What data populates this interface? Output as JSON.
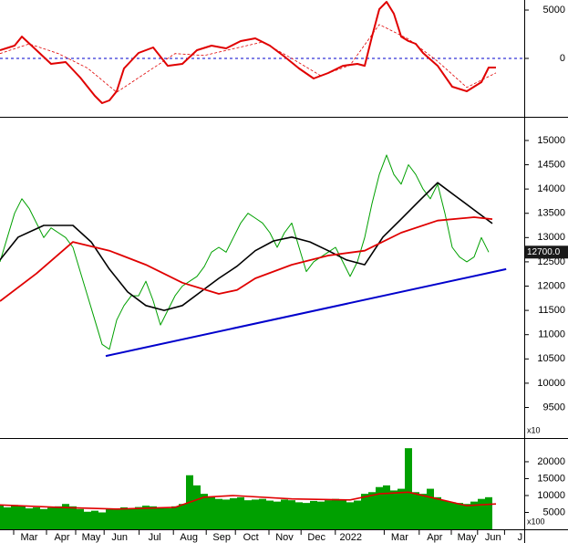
{
  "chart_data": [
    {
      "type": "line",
      "xlim": [
        0,
        72
      ],
      "ylim": [
        -6040,
        6040
      ],
      "yticks": [
        0,
        5000
      ],
      "reference_line": {
        "value": 0,
        "color": "#0000cc"
      },
      "series": [
        {
          "color": "#e00000",
          "width": 2,
          "x": [
            0,
            2,
            3,
            5,
            7,
            9,
            11,
            13,
            14,
            15,
            16,
            17,
            19,
            21,
            23,
            25,
            27,
            29,
            31,
            33,
            35,
            37,
            39,
            41,
            43,
            45,
            47,
            49,
            50,
            51,
            52,
            53,
            54,
            55,
            56,
            57,
            58,
            60,
            62,
            64,
            66,
            67,
            68
          ],
          "values": [
            850,
            1320,
            2260,
            850,
            -570,
            -380,
            -1980,
            -3870,
            -4620,
            -4340,
            -3400,
            -1040,
            570,
            1130,
            -760,
            -570,
            850,
            1320,
            1040,
            1790,
            2080,
            1320,
            190,
            -1040,
            -2080,
            -1510,
            -760,
            -570,
            -760,
            2260,
            5090,
            5850,
            4620,
            2260,
            1790,
            1510,
            570,
            -760,
            -2930,
            -3400,
            -2450,
            -940,
            -940
          ]
        },
        {
          "color": "#e00000",
          "width": 0.8,
          "dashed": true,
          "x": [
            0,
            4,
            8,
            12,
            16,
            20,
            24,
            28,
            32,
            36,
            40,
            44,
            48,
            52,
            56,
            60,
            64,
            68
          ],
          "values": [
            500,
            1500,
            500,
            -1000,
            -3500,
            -1500,
            500,
            300,
            1000,
            1700,
            0,
            -1800,
            -700,
            3500,
            2000,
            -300,
            -3000,
            -1500
          ]
        }
      ]
    },
    {
      "type": "line",
      "xlim": [
        0,
        72
      ],
      "ylim": [
        8870,
        15450
      ],
      "yticks": [
        9500,
        10000,
        10500,
        11000,
        11500,
        12000,
        12500,
        13000,
        13500,
        14000,
        14500,
        15000
      ],
      "axis_note": "x10",
      "last_value_label": {
        "value": 12700,
        "label": "12700.0"
      },
      "series": [
        {
          "color": "#00a000",
          "width": 1,
          "x": [
            0,
            1,
            2,
            3,
            4,
            5,
            6,
            7,
            8,
            9,
            10,
            11,
            12,
            13,
            14,
            15,
            16,
            17,
            18,
            19,
            20,
            21,
            22,
            23,
            24,
            25,
            26,
            27,
            28,
            29,
            30,
            31,
            32,
            33,
            34,
            35,
            36,
            37,
            38,
            39,
            40,
            41,
            42,
            43,
            44,
            45,
            46,
            47,
            48,
            49,
            50,
            51,
            52,
            53,
            54,
            55,
            56,
            57,
            58,
            59,
            60,
            61,
            62,
            63,
            64,
            65,
            66,
            67
          ],
          "values": [
            12500,
            13000,
            13500,
            13800,
            13600,
            13300,
            13000,
            13200,
            13100,
            13000,
            12800,
            12300,
            11800,
            11300,
            10800,
            10700,
            11300,
            11600,
            11800,
            11800,
            12100,
            11700,
            11200,
            11500,
            11800,
            12000,
            12100,
            12200,
            12400,
            12700,
            12800,
            12700,
            13000,
            13300,
            13500,
            13400,
            13300,
            13100,
            12800,
            13100,
            13300,
            12800,
            12300,
            12500,
            12600,
            12700,
            12800,
            12500,
            12200,
            12500,
            13000,
            13700,
            14300,
            14700,
            14300,
            14100,
            14500,
            14300,
            14000,
            13800,
            14100,
            13500,
            12800,
            12600,
            12500,
            12600,
            13000,
            12700
          ]
        },
        {
          "color": "#000000",
          "width": 1.6,
          "x": [
            0,
            2.5,
            6,
            10,
            12.5,
            15,
            17.5,
            20,
            22.5,
            25,
            27.5,
            30,
            32.5,
            35,
            37.5,
            40,
            42.5,
            45,
            47.5,
            50,
            52.5,
            55,
            57.5,
            60,
            62.5,
            65,
            67.5
          ],
          "values": [
            12540,
            13010,
            13250,
            13250,
            12910,
            12350,
            11880,
            11600,
            11500,
            11600,
            11880,
            12160,
            12410,
            12730,
            12930,
            13010,
            12910,
            12730,
            12540,
            12440,
            13010,
            13380,
            13760,
            14130,
            13850,
            13570,
            13290
          ]
        },
        {
          "color": "#e00000",
          "width": 1.8,
          "x": [
            0,
            5,
            10,
            15,
            20,
            25,
            30,
            32.5,
            35,
            40,
            45,
            50,
            55,
            60,
            65,
            67.5
          ],
          "values": [
            11690,
            12260,
            12910,
            12730,
            12440,
            12070,
            11840,
            11920,
            12160,
            12440,
            12630,
            12730,
            13100,
            13350,
            13420,
            13380
          ]
        },
        {
          "color": "#0000cc",
          "width": 2,
          "x": [
            14.5,
            69.4
          ],
          "values": [
            10560,
            12350
          ]
        }
      ]
    },
    {
      "type": "bar",
      "xlim": [
        0,
        72
      ],
      "ylim": [
        0,
        26200
      ],
      "yticks": [
        5000,
        10000,
        15000,
        20000
      ],
      "axis_note": "x100",
      "color": "#00a000",
      "values": [
        7000,
        6500,
        7200,
        6800,
        6200,
        6500,
        6000,
        6400,
        6800,
        7500,
        6800,
        6000,
        5200,
        5500,
        5000,
        6200,
        5800,
        6500,
        6000,
        6600,
        7000,
        6800,
        6500,
        6200,
        6800,
        7500,
        16000,
        13000,
        10500,
        9500,
        9000,
        8800,
        9200,
        9500,
        8600,
        8800,
        9000,
        8500,
        8200,
        8800,
        8600,
        8000,
        7800,
        8400,
        8200,
        8600,
        9000,
        8800,
        8000,
        8500,
        10500,
        11000,
        12500,
        13000,
        11500,
        12000,
        24000,
        11000,
        10500,
        12000,
        9500,
        8500,
        8000,
        7800,
        7500,
        8200,
        9000,
        9500
      ],
      "series": [
        {
          "color": "#e00000",
          "width": 1.6,
          "x": [
            0,
            8,
            16,
            24,
            28,
            32,
            40,
            48,
            52,
            56,
            60,
            64,
            68
          ],
          "values": [
            7200,
            6500,
            6000,
            6500,
            9500,
            10000,
            9000,
            8700,
            10500,
            11000,
            9000,
            7000,
            7500
          ]
        }
      ],
      "xticks": [
        {
          "value": 4,
          "label": "Mar"
        },
        {
          "value": 8.5,
          "label": "Apr"
        },
        {
          "value": 12.5,
          "label": "May"
        },
        {
          "value": 16.4,
          "label": "Jun"
        },
        {
          "value": 21.2,
          "label": "Jul"
        },
        {
          "value": 25.9,
          "label": "Aug"
        },
        {
          "value": 30.4,
          "label": "Sep"
        },
        {
          "value": 34.4,
          "label": "Oct"
        },
        {
          "value": 39,
          "label": "Nov"
        },
        {
          "value": 43.4,
          "label": "Dec"
        },
        {
          "value": 48.1,
          "label": "2022"
        },
        {
          "value": 54.8,
          "label": "Mar"
        },
        {
          "value": 59.6,
          "label": "Apr"
        },
        {
          "value": 64,
          "label": "May"
        },
        {
          "value": 67.6,
          "label": "Jun"
        },
        {
          "value": 71.3,
          "label": "J"
        }
      ]
    }
  ]
}
